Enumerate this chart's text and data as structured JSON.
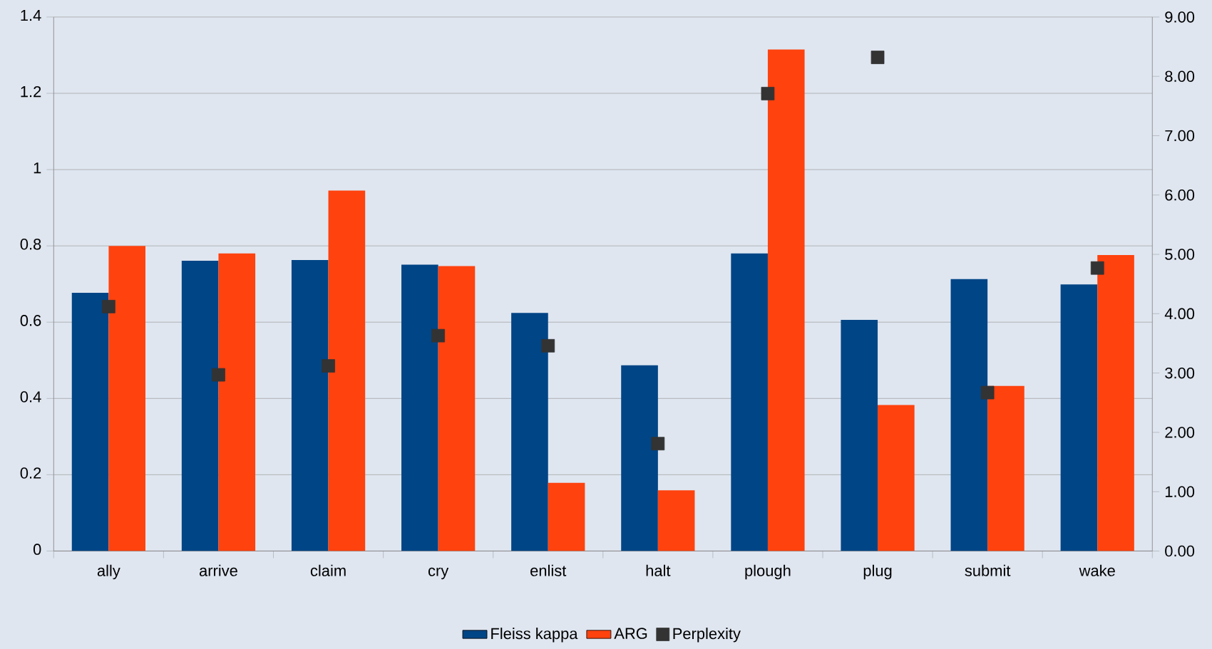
{
  "chart_data": {
    "type": "bar",
    "categories": [
      "ally",
      "arrive",
      "claim",
      "cry",
      "enlist",
      "halt",
      "plough",
      "plug",
      "submit",
      "wake"
    ],
    "series": [
      {
        "name": "Fleiss kappa",
        "color": "#004586",
        "values": [
          0.677,
          0.761,
          0.763,
          0.751,
          0.624,
          0.487,
          0.78,
          0.606,
          0.713,
          0.699
        ]
      },
      {
        "name": "ARG",
        "color": "#ff420e",
        "values": [
          0.8,
          0.78,
          0.945,
          0.747,
          0.179,
          0.159,
          1.315,
          0.383,
          0.433,
          0.776
        ]
      },
      {
        "name": "Perplexity",
        "type": "scatter",
        "axis": "y2",
        "marker": "square",
        "color": "#333333",
        "values": [
          4.12,
          2.97,
          3.12,
          3.63,
          3.46,
          1.81,
          7.71,
          8.32,
          2.67,
          4.77
        ]
      }
    ],
    "ylim": [
      0,
      1.4
    ],
    "yticks": [
      0,
      0.2,
      0.4,
      0.6,
      0.8,
      1,
      1.2,
      1.4
    ],
    "y2lim": [
      0,
      9
    ],
    "y2ticks": [
      {
        "value": 0,
        "label": "0.00"
      },
      {
        "value": 1,
        "label": "1.00"
      },
      {
        "value": 2,
        "label": "2.00"
      },
      {
        "value": 3,
        "label": "3.00"
      },
      {
        "value": 4,
        "label": "4.00"
      },
      {
        "value": 5,
        "label": "5.00"
      },
      {
        "value": 6,
        "label": "6.00"
      },
      {
        "value": 7,
        "label": "7.00"
      },
      {
        "value": 8,
        "label": "8.00"
      },
      {
        "value": 9,
        "label": "9.00"
      }
    ],
    "grid": "y",
    "legend": "bottom"
  }
}
